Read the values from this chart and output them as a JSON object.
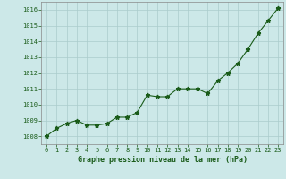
{
  "x": [
    0,
    1,
    2,
    3,
    4,
    5,
    6,
    7,
    8,
    9,
    10,
    11,
    12,
    13,
    14,
    15,
    16,
    17,
    18,
    19,
    20,
    21,
    22,
    23
  ],
  "y": [
    1008.0,
    1008.5,
    1008.8,
    1009.0,
    1008.7,
    1008.7,
    1008.8,
    1009.2,
    1009.2,
    1009.5,
    1010.6,
    1010.5,
    1010.5,
    1011.0,
    1011.0,
    1011.0,
    1010.7,
    1011.5,
    1012.0,
    1012.6,
    1013.5,
    1014.5,
    1015.3,
    1016.1
  ],
  "ylim": [
    1007.5,
    1016.5
  ],
  "xlim": [
    -0.5,
    23.5
  ],
  "yticks": [
    1008,
    1009,
    1010,
    1011,
    1012,
    1013,
    1014,
    1015,
    1016
  ],
  "xticks": [
    0,
    1,
    2,
    3,
    4,
    5,
    6,
    7,
    8,
    9,
    10,
    11,
    12,
    13,
    14,
    15,
    16,
    17,
    18,
    19,
    20,
    21,
    22,
    23
  ],
  "line_color": "#1a5c1a",
  "marker": "*",
  "marker_size": 3.5,
  "bg_color": "#cce8e8",
  "grid_color": "#aacccc",
  "xlabel": "Graphe pression niveau de la mer (hPa)",
  "xlabel_color": "#1a5c1a",
  "tick_color": "#1a5c1a",
  "border_color": "#888888",
  "line_width": 0.8,
  "tick_fontsize": 5.0,
  "xlabel_fontsize": 6.0
}
